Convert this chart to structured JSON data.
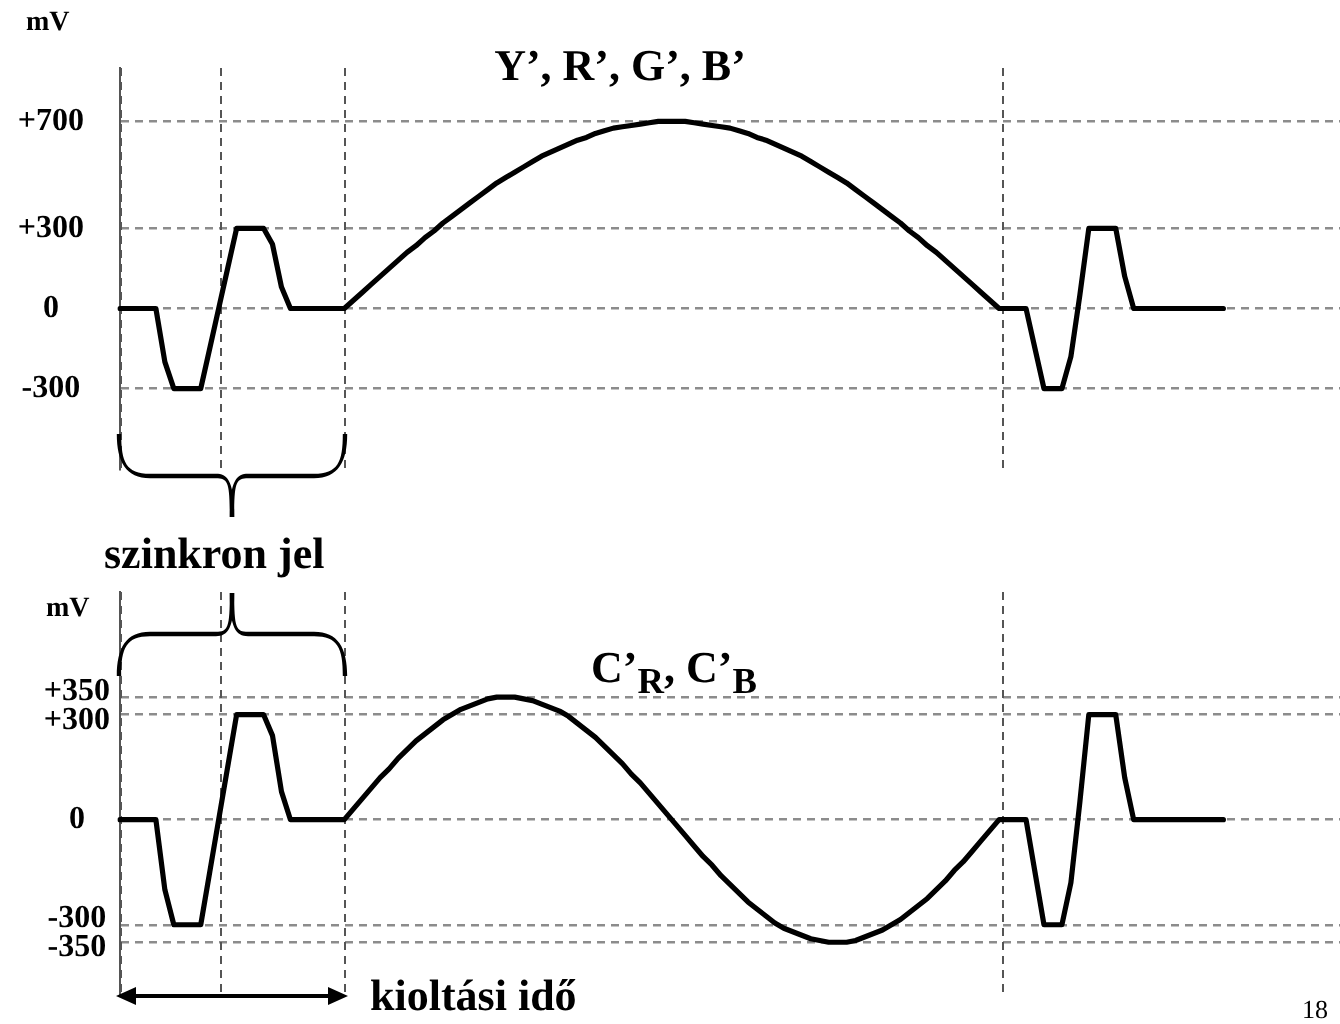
{
  "chart_data": [
    {
      "type": "line",
      "title": "Y’, R’, G’, B’",
      "ylabel": "mV",
      "categories": [
        null,
        null,
        null,
        null,
        null,
        null,
        null,
        null,
        null,
        null,
        null,
        null,
        null,
        null,
        null,
        null,
        null,
        null,
        null,
        null,
        null,
        null,
        null,
        null,
        null,
        null,
        null,
        null,
        null,
        null,
        null,
        null,
        null,
        null,
        null,
        null,
        null,
        null,
        null,
        null,
        null,
        null,
        null,
        null,
        null,
        null,
        null,
        null,
        null,
        null,
        null,
        null,
        null,
        null,
        null,
        null,
        null,
        null,
        null,
        null,
        null,
        null,
        null,
        null,
        null,
        null,
        null,
        null,
        null,
        null,
        null,
        null,
        null,
        null,
        null,
        null,
        null,
        null,
        null,
        null,
        null,
        null,
        null,
        null,
        null,
        null,
        null,
        null,
        null,
        null,
        null,
        null,
        null,
        null,
        null,
        null,
        null,
        null,
        null,
        null,
        null,
        null,
        null,
        null,
        null,
        null,
        null,
        null,
        null,
        null,
        null,
        null,
        null,
        null,
        null,
        null,
        null,
        null,
        null,
        null,
        null,
        null,
        null,
        null,
        null,
        null,
        null,
        null,
        null,
        null,
        null,
        null,
        null,
        null,
        null,
        null,
        null
      ],
      "values": [
        0,
        0,
        0,
        0,
        0,
        -200,
        -300,
        -300,
        -300,
        -300,
        -150,
        0,
        150,
        300,
        300,
        300,
        300,
        240,
        80,
        0,
        0,
        0,
        0,
        0,
        0,
        0,
        30,
        60,
        90,
        120,
        150,
        180,
        210,
        235,
        265,
        290,
        320,
        345,
        370,
        395,
        420,
        445,
        470,
        490,
        510,
        530,
        550,
        570,
        585,
        600,
        615,
        630,
        640,
        655,
        665,
        675,
        680,
        685,
        690,
        695,
        700,
        700,
        700,
        700,
        695,
        690,
        685,
        680,
        675,
        665,
        655,
        640,
        630,
        615,
        600,
        585,
        570,
        550,
        530,
        510,
        490,
        470,
        445,
        420,
        395,
        370,
        345,
        320,
        290,
        265,
        235,
        210,
        180,
        150,
        120,
        90,
        60,
        30,
        0,
        0,
        0,
        0,
        -150,
        -300,
        -300,
        -300,
        -180,
        50,
        300,
        300,
        300,
        300,
        120,
        0,
        0,
        0,
        0,
        0,
        0,
        0,
        0,
        0,
        0,
        0,
        null,
        null,
        null,
        null,
        null,
        null,
        null,
        null,
        null,
        null,
        null,
        null,
        null
      ],
      "color": "#000000",
      "line_style": "solid",
      "ylim": [
        -600,
        900
      ],
      "yticks": [
        -300,
        0,
        {
          "value": 300,
          "label": "+300"
        },
        {
          "value": 700,
          "label": "+700"
        }
      ],
      "grid": "y",
      "tick_labels": "y"
    },
    {
      "type": "line",
      "title": "C’$_{R}$, C’$_{B}$",
      "ylabel": "mV",
      "annotations": [
        "szinkron jel",
        "kioltási idő",
        "18"
      ],
      "categories": [
        null,
        null,
        null,
        null,
        null,
        null,
        null,
        null,
        null,
        null,
        null,
        null,
        null,
        null,
        null,
        null,
        null,
        null,
        null,
        null,
        null,
        null,
        null,
        null,
        null,
        null,
        null,
        null,
        null,
        null,
        null,
        null,
        null,
        null,
        null,
        null,
        null,
        null,
        null,
        null,
        null,
        null,
        null,
        null,
        null,
        null,
        null,
        null,
        null,
        null,
        null,
        null,
        null,
        null,
        null,
        null,
        null,
        null,
        null,
        null,
        null,
        null,
        null,
        null,
        null,
        null,
        null,
        null,
        null,
        null,
        null,
        null,
        null,
        null,
        null,
        null,
        null,
        null,
        null,
        null,
        null,
        null,
        null,
        null,
        null,
        null,
        null,
        null,
        null,
        null,
        null,
        null,
        null,
        null,
        null,
        null,
        null,
        null,
        null,
        null,
        null,
        null,
        null,
        null,
        null,
        null,
        null,
        null,
        null,
        null,
        null,
        null,
        null,
        null,
        null,
        null,
        null,
        null,
        null,
        null,
        null,
        null,
        null,
        null,
        null,
        null,
        null,
        null,
        null,
        null,
        null,
        null,
        null,
        null,
        null,
        null,
        null
      ],
      "values": [
        0,
        0,
        0,
        0,
        0,
        -200,
        -300,
        -300,
        -300,
        -300,
        -150,
        0,
        150,
        300,
        300,
        300,
        300,
        240,
        80,
        0,
        0,
        0,
        0,
        0,
        0,
        0,
        30,
        60,
        90,
        120,
        145,
        175,
        200,
        225,
        245,
        265,
        285,
        300,
        315,
        325,
        335,
        345,
        350,
        350,
        350,
        345,
        340,
        330,
        320,
        310,
        295,
        275,
        255,
        235,
        210,
        185,
        160,
        130,
        105,
        75,
        45,
        15,
        -15,
        -45,
        -75,
        -105,
        -130,
        -160,
        -185,
        -210,
        -235,
        -255,
        -275,
        -295,
        -310,
        -320,
        -330,
        -340,
        -345,
        -350,
        -350,
        -350,
        -345,
        -335,
        -325,
        -315,
        -300,
        -285,
        -265,
        -245,
        -225,
        -200,
        -175,
        -145,
        -120,
        -90,
        -60,
        -30,
        0,
        0,
        0,
        0,
        -150,
        -300,
        -300,
        -300,
        -180,
        50,
        300,
        300,
        300,
        300,
        120,
        0,
        0,
        0,
        0,
        0,
        0,
        0,
        0,
        0,
        0,
        0,
        null,
        null,
        null,
        null,
        null,
        null,
        null,
        null,
        null,
        null,
        null,
        null,
        null
      ],
      "color": "#000000",
      "line_style": "solid",
      "ylim": [
        -500,
        650
      ],
      "yticks": [
        -350,
        -300,
        0,
        {
          "value": 300,
          "label": "+300"
        },
        {
          "value": 350,
          "label": "+350"
        }
      ],
      "grid": "y",
      "tick_labels": "y"
    }
  ]
}
